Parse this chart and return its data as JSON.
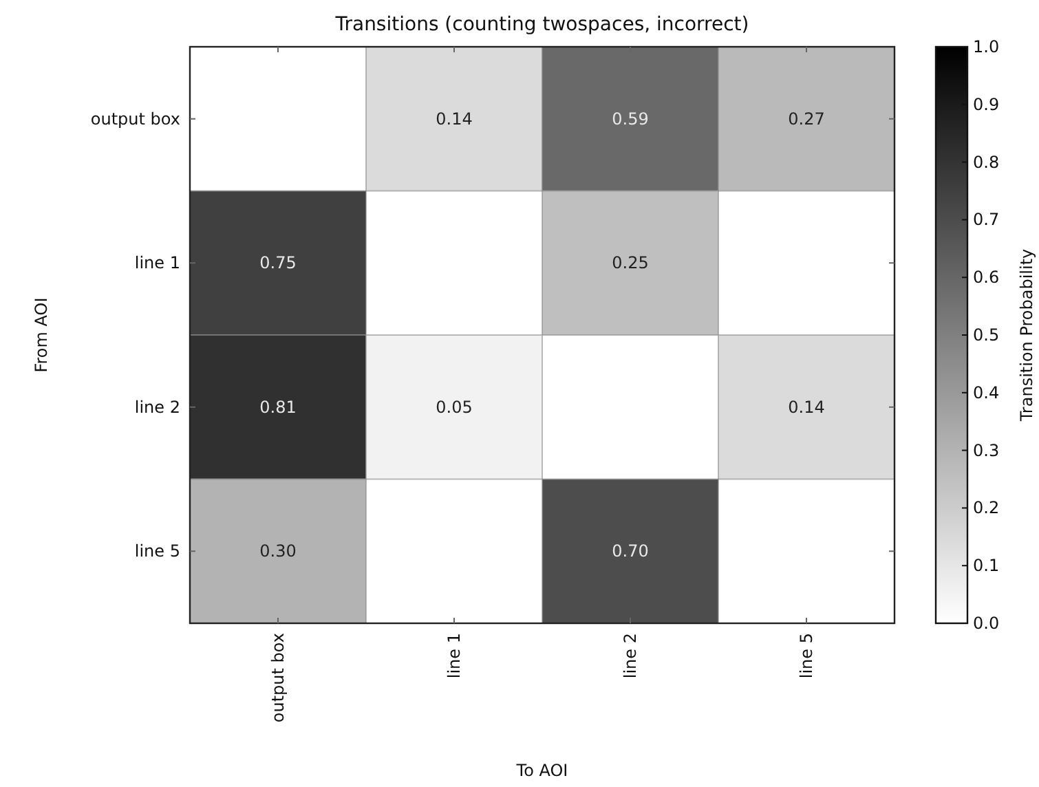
{
  "chart_data": {
    "type": "heatmap",
    "title": "Transitions (counting twospaces, incorrect)",
    "xlabel": "To AOI",
    "ylabel": "From AOI",
    "clabel": "Transition Probability",
    "categories": [
      "output box",
      "line 1",
      "line 2",
      "line 5"
    ],
    "y_categories": [
      "output box",
      "line 1",
      "line 2",
      "line 5"
    ],
    "cells": [
      [
        null,
        0.14,
        0.59,
        0.27
      ],
      [
        0.75,
        null,
        0.25,
        null
      ],
      [
        0.81,
        0.05,
        null,
        0.14
      ],
      [
        0.3,
        null,
        0.7,
        null
      ]
    ],
    "cell_labels": [
      [
        null,
        "0.14",
        "0.59",
        "0.27"
      ],
      [
        "0.75",
        null,
        "0.25",
        null
      ],
      [
        "0.81",
        "0.05",
        null,
        "0.14"
      ],
      [
        "0.30",
        null,
        "0.70",
        null
      ]
    ],
    "clim": [
      0,
      1
    ],
    "cticks": [
      {
        "value": 0,
        "label": "0.0"
      },
      0.1,
      0.2,
      0.3,
      0.4,
      0.5,
      0.6,
      0.7,
      0.8,
      0.9,
      {
        "value": 1,
        "label": "1.0"
      }
    ]
  }
}
